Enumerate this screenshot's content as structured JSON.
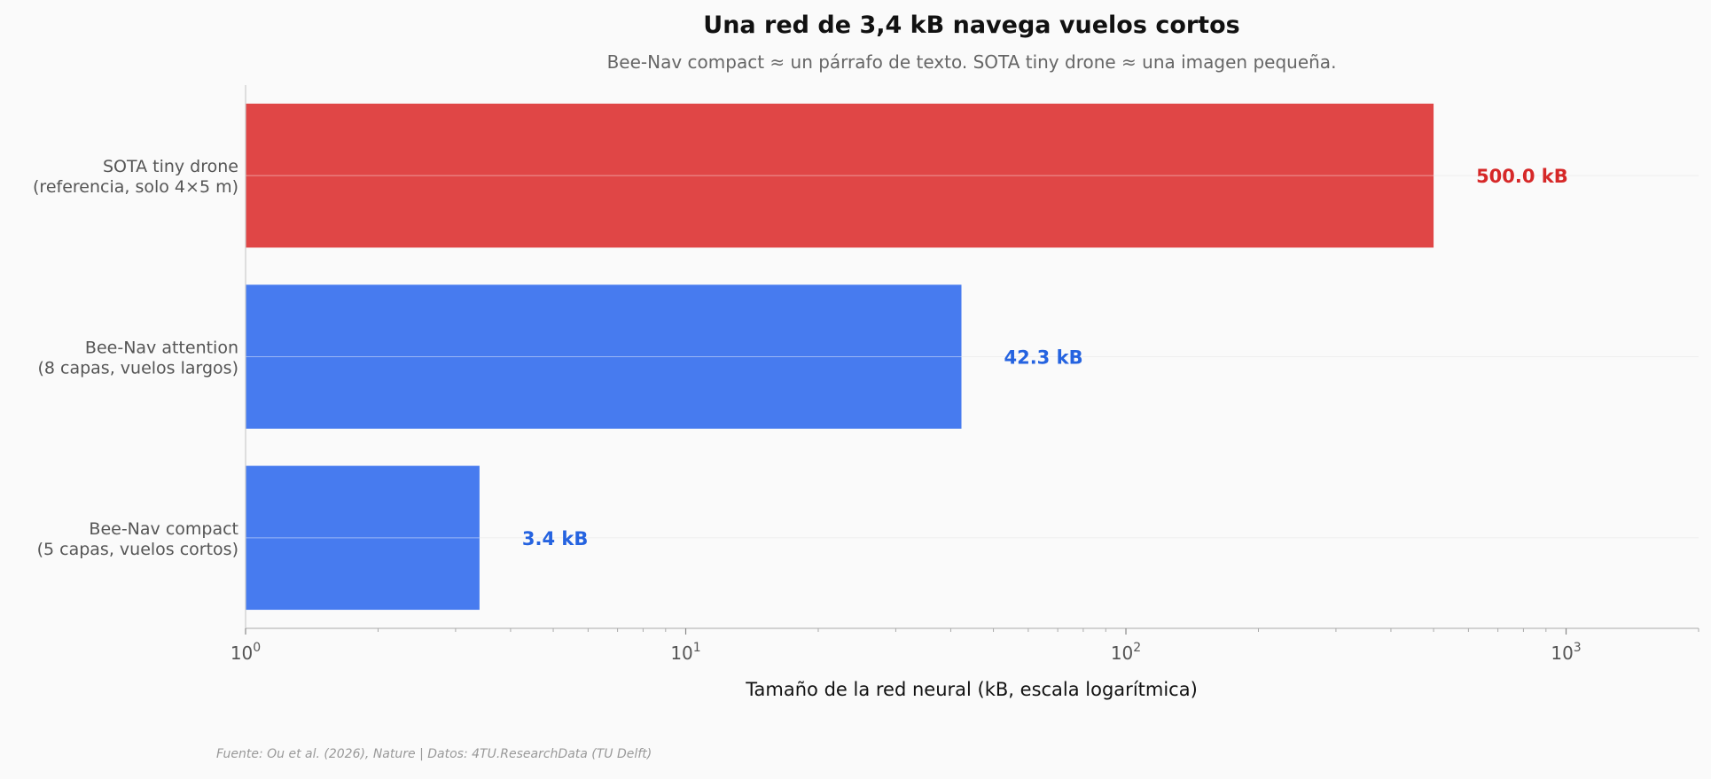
{
  "chart_data": {
    "type": "bar",
    "orientation": "horizontal",
    "title": "Una red de 3,4 kB navega vuelos cortos",
    "subtitle": "Bee-Nav compact ≈ un párrafo de texto. SOTA tiny drone ≈ una imagen pequeña.",
    "xlabel": "Tamaño de la red neural (kB, escala logarítmica)",
    "ylabel": "",
    "xscale": "log",
    "xlim": [
      1,
      2000
    ],
    "x_ticks": [
      {
        "base": "10",
        "exp": "0",
        "value": 1
      },
      {
        "base": "10",
        "exp": "1",
        "value": 10
      },
      {
        "base": "10",
        "exp": "2",
        "value": 100
      },
      {
        "base": "10",
        "exp": "3",
        "value": 1000
      }
    ],
    "grid": "x-minor",
    "categories": [
      [
        "SOTA tiny drone",
        "(referencia, solo 4×5 m)"
      ],
      [
        "Bee-Nav attention",
        "(8 capas, vuelos largos)"
      ],
      [
        "Bee-Nav compact",
        "(5 capas, vuelos cortos)"
      ]
    ],
    "values": [
      500.0,
      42.3,
      3.4
    ],
    "value_labels": [
      "500.0 kB",
      "42.3 kB",
      "3.4 kB"
    ],
    "bar_colors": [
      "#e04646",
      "#477bef",
      "#477bef"
    ],
    "label_colors": [
      "#d62828",
      "#2563e0",
      "#2563e0"
    ],
    "source": "Fuente: Ou et al. (2026), Nature | Datos: 4TU.ResearchData (TU Delft)"
  }
}
